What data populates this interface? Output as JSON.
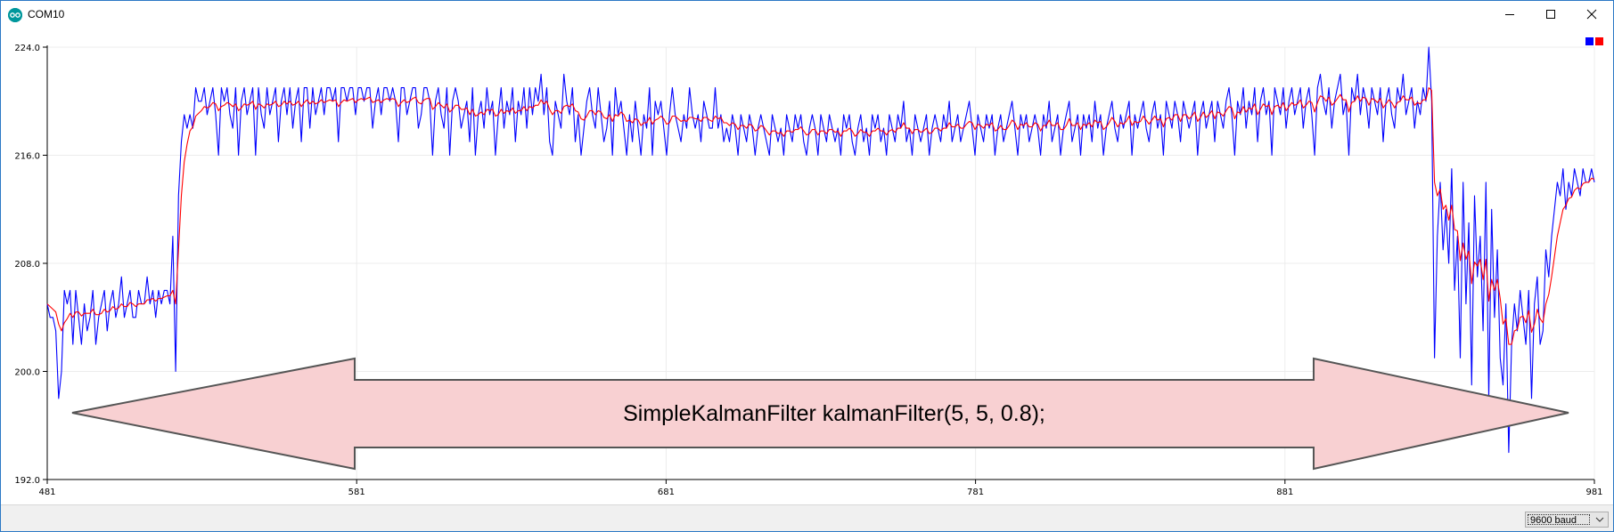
{
  "window": {
    "title": "COM10",
    "app_icon": "arduino-logo-icon",
    "controls": [
      "minimize-icon",
      "maximize-icon",
      "close-icon"
    ]
  },
  "annotation": {
    "text": "SimpleKalmanFilter kalmanFilter(5, 5, 0.8);",
    "fill_color": "#f8d0d2",
    "stroke_color": "#555555"
  },
  "legend": {
    "swatches": [
      "#0000ff",
      "#ff0000"
    ]
  },
  "statusbar": {
    "baud": "9600 baud"
  },
  "chart_data": {
    "type": "line",
    "xlim": [
      481,
      981
    ],
    "ylim": [
      192.0,
      224.0
    ],
    "x_ticks": [
      "481",
      "581",
      "681",
      "781",
      "881",
      "981"
    ],
    "y_ticks": [
      "192.0",
      "200.0",
      "208.0",
      "216.0",
      "224.0"
    ],
    "grid": true,
    "legend_position": "top-right",
    "series": [
      {
        "color": "#0000ff",
        "values": [
          205,
          204,
          204,
          203,
          198,
          200,
          206,
          205,
          206,
          202,
          206,
          204,
          202,
          205,
          203,
          204,
          206,
          202,
          204,
          205,
          206,
          203,
          205,
          206,
          204,
          205,
          207,
          204,
          205,
          206,
          204,
          204,
          206,
          205,
          205,
          207,
          205,
          206,
          204,
          206,
          205,
          206,
          206,
          205,
          210,
          200,
          213,
          217,
          219,
          218,
          219,
          218,
          221,
          220,
          220,
          221,
          219,
          220,
          221,
          219,
          216,
          221,
          220,
          221,
          219,
          218,
          221,
          216,
          220,
          221,
          219,
          220,
          221,
          216,
          221,
          219,
          218,
          221,
          219,
          220,
          221,
          217,
          220,
          221,
          219,
          221,
          218,
          220,
          221,
          217,
          221,
          221,
          218,
          221,
          219,
          220,
          221,
          219,
          221,
          221,
          220,
          221,
          217,
          221,
          221,
          220,
          221,
          221,
          219,
          221,
          221,
          220,
          221,
          221,
          218,
          220,
          221,
          219,
          221,
          221,
          220,
          221,
          220,
          217,
          221,
          221,
          219,
          220,
          221,
          221,
          218,
          219,
          221,
          221,
          220,
          216,
          220,
          221,
          219,
          218,
          221,
          216,
          220,
          221,
          220,
          218,
          219,
          220,
          217,
          221,
          216,
          219,
          220,
          218,
          221,
          219,
          220,
          216,
          219,
          221,
          218,
          220,
          219,
          221,
          217,
          220,
          219,
          221,
          218,
          221,
          219,
          221,
          220,
          222,
          219,
          221,
          217,
          216,
          220,
          219,
          218,
          222,
          220,
          219,
          221,
          217,
          219,
          216,
          218,
          220,
          221,
          219,
          218,
          221,
          219,
          217,
          218,
          220,
          216,
          221,
          219,
          220,
          218,
          216,
          219,
          217,
          220,
          218,
          216,
          219,
          218,
          221,
          216,
          220,
          219,
          220,
          218,
          216,
          219,
          221,
          219,
          218,
          217,
          219,
          218,
          221,
          219,
          218,
          219,
          217,
          220,
          219,
          218,
          218,
          221,
          218,
          219,
          217,
          218,
          217,
          219,
          218,
          216,
          219,
          218,
          217,
          219,
          218,
          216,
          218,
          219,
          218,
          217,
          216,
          219,
          218,
          217,
          218,
          216,
          219,
          218,
          217,
          219,
          218,
          219,
          217,
          216,
          218,
          219,
          218,
          216,
          219,
          218,
          217,
          219,
          218,
          217,
          218,
          216,
          219,
          218,
          219,
          217,
          216,
          218,
          219,
          217,
          218,
          216,
          219,
          218,
          219,
          217,
          218,
          216,
          219,
          218,
          217,
          219,
          218,
          220,
          217,
          218,
          216,
          219,
          218,
          217,
          218,
          219,
          216,
          218,
          219,
          218,
          217,
          219,
          218,
          220,
          217,
          218,
          219,
          217,
          218,
          219,
          220,
          218,
          216,
          219,
          218,
          217,
          219,
          218,
          219,
          216,
          218,
          219,
          217,
          218,
          219,
          220,
          218,
          216,
          219,
          218,
          219,
          217,
          218,
          219,
          218,
          216,
          219,
          218,
          220,
          217,
          218,
          219,
          216,
          218,
          219,
          220,
          217,
          218,
          219,
          216,
          219,
          218,
          219,
          217,
          220,
          218,
          219,
          216,
          218,
          219,
          220,
          218,
          217,
          219,
          218,
          219,
          220,
          216,
          219,
          218,
          219,
          220,
          218,
          217,
          219,
          220,
          218,
          219,
          216,
          220,
          219,
          218,
          220,
          219,
          217,
          220,
          219,
          218,
          219,
          220,
          216,
          219,
          220,
          218,
          219,
          220,
          217,
          220,
          219,
          218,
          220,
          221,
          219,
          216,
          220,
          219,
          221,
          218,
          220,
          219,
          221,
          217,
          220,
          221,
          219,
          220,
          216,
          221,
          220,
          219,
          221,
          218,
          220,
          221,
          219,
          220,
          221,
          218,
          220,
          221,
          219,
          216,
          221,
          222,
          220,
          219,
          221,
          218,
          220,
          221,
          222,
          219,
          220,
          216,
          221,
          220,
          222,
          219,
          221,
          220,
          218,
          221,
          220,
          219,
          221,
          217,
          220,
          221,
          219,
          218,
          221,
          220,
          222,
          219,
          220,
          221,
          218,
          220,
          219,
          221,
          220,
          224,
          220,
          201,
          210,
          214,
          209,
          212,
          208,
          215,
          206,
          210,
          201,
          214,
          205,
          211,
          199,
          213,
          207,
          210,
          203,
          214,
          198,
          212,
          204,
          209,
          201,
          199,
          205,
          194,
          202,
          205,
          203,
          206,
          204,
          202,
          206,
          198,
          205,
          207,
          202,
          203,
          209,
          207,
          210,
          212,
          214,
          213,
          215,
          212,
          214,
          213,
          215,
          214,
          213,
          215,
          214,
          214,
          215,
          214
        ]
      },
      {
        "color": "#ff0000",
        "values": [
          205,
          204.8,
          204.6,
          204.4,
          203.5,
          203,
          203.6,
          203.9,
          204.3,
          204,
          204.4,
          204.4,
          204.1,
          204.3,
          204.3,
          204.3,
          204.6,
          204.2,
          204.2,
          204.3,
          204.6,
          204.4,
          204.5,
          204.8,
          204.6,
          204.7,
          205,
          204.8,
          204.8,
          205.1,
          205,
          204.8,
          205,
          205,
          205,
          205.3,
          205.3,
          205.4,
          205.2,
          205.4,
          205.4,
          205.5,
          205.6,
          205.6,
          206,
          205,
          209,
          213,
          215.5,
          216.8,
          217.8,
          218.1,
          218.9,
          219.1,
          219.3,
          219.6,
          219.5,
          219.6,
          219.9,
          219.8,
          219.3,
          219.6,
          219.7,
          219.9,
          219.8,
          219.6,
          219.8,
          219.3,
          219.5,
          219.8,
          219.7,
          219.8,
          220,
          219.4,
          219.8,
          219.7,
          219.5,
          219.8,
          219.7,
          219.8,
          220,
          219.6,
          219.7,
          220,
          219.8,
          220,
          219.7,
          219.8,
          220,
          219.6,
          219.9,
          220.1,
          219.8,
          220,
          219.8,
          219.9,
          220.1,
          219.9,
          220,
          220.1,
          220,
          220.1,
          219.6,
          219.9,
          220.1,
          220,
          220.1,
          220.2,
          219.9,
          220.1,
          220.2,
          220.1,
          220.2,
          220.3,
          219.9,
          220,
          220.1,
          219.9,
          220.1,
          220.2,
          220.1,
          220.2,
          220.1,
          219.6,
          219.9,
          220.1,
          219.9,
          220,
          220.2,
          220.3,
          219.9,
          219.8,
          220.1,
          220.2,
          220.2,
          219.4,
          219.6,
          219.9,
          219.7,
          219.5,
          219.8,
          219.2,
          219.4,
          219.7,
          219.7,
          219.4,
          219.4,
          219.5,
          219,
          219.4,
          218.9,
          219,
          219.2,
          219,
          219.4,
          219.3,
          219.4,
          218.9,
          219,
          219.4,
          219.1,
          219.3,
          219.2,
          219.5,
          219.1,
          219.3,
          219.3,
          219.6,
          219.3,
          219.6,
          219.5,
          219.7,
          219.7,
          220.1,
          219.8,
          220,
          219.4,
          219,
          219.3,
          219.3,
          219.1,
          219.6,
          219.7,
          219.6,
          219.8,
          219.3,
          219.2,
          218.7,
          218.6,
          218.9,
          219.3,
          219.3,
          219,
          219.3,
          219.2,
          218.8,
          218.7,
          219,
          218.5,
          219,
          218.9,
          219.2,
          219,
          218.5,
          218.6,
          218.4,
          218.7,
          218.6,
          218.2,
          218.4,
          218.4,
          218.8,
          218.3,
          218.6,
          218.7,
          218.9,
          218.7,
          218.3,
          218.4,
          218.9,
          218.9,
          218.7,
          218.5,
          218.6,
          218.5,
          218.8,
          218.8,
          218.7,
          218.7,
          218.5,
          218.8,
          218.8,
          218.6,
          218.5,
          218.9,
          218.7,
          218.8,
          218.4,
          218.4,
          218.2,
          218.4,
          218.3,
          217.9,
          218.2,
          218.2,
          218,
          218.3,
          218.2,
          217.8,
          217.9,
          218.2,
          218.1,
          217.8,
          217.5,
          217.8,
          217.8,
          217.6,
          217.7,
          217.4,
          217.8,
          217.8,
          217.7,
          217.9,
          217.9,
          218.1,
          217.8,
          217.5,
          217.6,
          217.9,
          217.9,
          217.5,
          217.8,
          217.8,
          217.6,
          217.9,
          217.9,
          217.7,
          217.8,
          217.4,
          217.8,
          217.8,
          218,
          217.8,
          217.4,
          217.6,
          217.9,
          217.7,
          217.7,
          217.4,
          217.8,
          217.8,
          218,
          217.8,
          217.8,
          217.5,
          217.8,
          217.9,
          217.7,
          218,
          218,
          218.4,
          218,
          218,
          217.6,
          217.9,
          217.9,
          217.7,
          217.8,
          218,
          217.6,
          217.7,
          218,
          218,
          217.8,
          218,
          218,
          218.4,
          218.1,
          218.1,
          218.3,
          218,
          218,
          218.3,
          218.5,
          218.4,
          217.9,
          218.3,
          218.2,
          218,
          218.3,
          218.2,
          218.4,
          217.8,
          217.9,
          218.2,
          217.9,
          217.9,
          218.2,
          218.6,
          218.4,
          217.9,
          218.3,
          218.2,
          218.4,
          218.1,
          218.1,
          218.4,
          218.3,
          217.8,
          218.2,
          218.2,
          218.6,
          218.2,
          218.2,
          218.4,
          217.9,
          217.9,
          218.2,
          218.7,
          218.2,
          218.2,
          218.4,
          217.9,
          218.3,
          218.2,
          218.4,
          218.1,
          218.6,
          218.4,
          218.5,
          217.9,
          218.1,
          218.4,
          218.8,
          218.5,
          218.1,
          218.4,
          218.3,
          218.5,
          218.9,
          218.2,
          218.5,
          218.4,
          218.5,
          218.9,
          218.6,
          218.3,
          218.6,
          218.9,
          218.6,
          218.7,
          218.1,
          218.7,
          218.8,
          218.6,
          219,
          219,
          218.5,
          219,
          219,
          218.7,
          218.9,
          219.2,
          218.5,
          218.8,
          219.2,
          218.8,
          219,
          219.3,
          218.7,
          219.2,
          219.1,
          218.9,
          219.3,
          219.6,
          219.5,
          218.7,
          219.2,
          219.1,
          219.6,
          219.2,
          219.5,
          219.4,
          219.8,
          219,
          219.4,
          219.8,
          219.6,
          219.7,
          219,
          219.6,
          219.7,
          219.5,
          219.9,
          219.3,
          219.6,
          219.9,
          219.7,
          219.8,
          220.1,
          219.5,
          219.7,
          220,
          219.9,
          219.2,
          219.9,
          220.4,
          220.3,
          220,
          220.3,
          219.7,
          219.9,
          220.2,
          220.5,
          220.1,
          220.1,
          219.2,
          219.9,
          220,
          220.4,
          220,
          220.3,
          220.2,
          219.7,
          220.2,
          220.1,
          219.9,
          220.2,
          219.5,
          219.8,
          220.1,
          219.9,
          219.5,
          219.9,
          220,
          220.4,
          220.1,
          220.1,
          220.3,
          219.7,
          219.9,
          219.8,
          220.1,
          220.1,
          221,
          220.8,
          214,
          213,
          213.5,
          212,
          212.3,
          211.2,
          212.3,
          210.5,
          210.4,
          208.2,
          209.5,
          208.3,
          208.9,
          206.5,
          208.1,
          207.8,
          208.3,
          206.8,
          208.3,
          205.2,
          206.8,
          206,
          206.8,
          205.4,
          203.5,
          203.9,
          202,
          202,
          203,
          203.1,
          204,
          204.1,
          203.6,
          204.5,
          202.9,
          203.5,
          204.6,
          203.9,
          203.6,
          205,
          205.7,
          207,
          208.5,
          210,
          211,
          212,
          212.3,
          212.8,
          212.9,
          213.4,
          213.6,
          213.5,
          213.9,
          214,
          214,
          214.3,
          214.2
        ]
      }
    ]
  }
}
